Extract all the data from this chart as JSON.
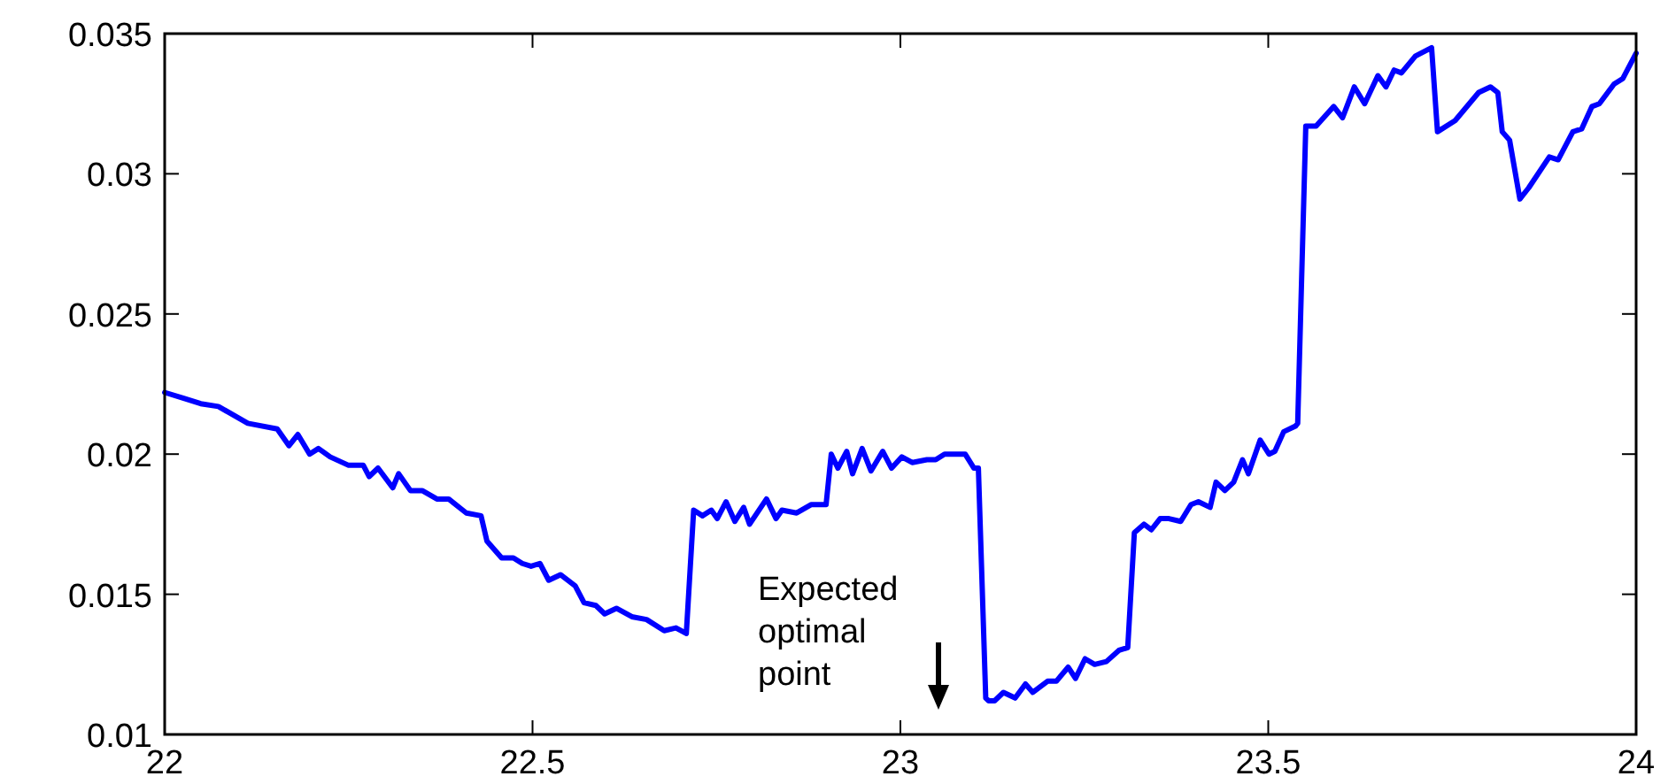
{
  "chart_data": {
    "type": "line",
    "x": [
      22.0,
      22.025,
      22.049,
      22.073,
      22.113,
      22.153,
      22.169,
      22.181,
      22.197,
      22.209,
      22.225,
      22.25,
      22.27,
      22.278,
      22.29,
      22.31,
      22.318,
      22.334,
      22.35,
      22.37,
      22.386,
      22.41,
      22.43,
      22.438,
      22.458,
      22.474,
      22.486,
      22.498,
      22.51,
      22.522,
      22.538,
      22.558,
      22.57,
      22.586,
      22.598,
      22.614,
      22.635,
      22.655,
      22.679,
      22.695,
      22.709,
      22.719,
      22.731,
      22.743,
      22.751,
      22.763,
      22.775,
      22.787,
      22.795,
      22.818,
      22.831,
      22.839,
      22.859,
      22.879,
      22.899,
      22.906,
      22.915,
      22.927,
      22.935,
      22.948,
      22.96,
      22.976,
      22.988,
      23.002,
      23.016,
      23.036,
      23.048,
      23.06,
      23.072,
      23.088,
      23.1,
      23.106,
      23.116,
      23.12,
      23.128,
      23.14,
      23.156,
      23.17,
      23.18,
      23.2,
      23.212,
      23.228,
      23.238,
      23.251,
      23.264,
      23.28,
      23.297,
      23.309,
      23.318,
      23.331,
      23.341,
      23.353,
      23.365,
      23.381,
      23.395,
      23.405,
      23.421,
      23.429,
      23.441,
      23.453,
      23.465,
      23.473,
      23.489,
      23.501,
      23.509,
      23.521,
      23.537,
      23.54,
      23.551,
      23.565,
      23.589,
      23.601,
      23.617,
      23.631,
      23.649,
      23.66,
      23.671,
      23.681,
      23.7,
      23.722,
      23.73,
      23.754,
      23.786,
      23.802,
      23.812,
      23.818,
      23.828,
      23.842,
      23.854,
      23.882,
      23.894,
      23.914,
      23.926,
      23.94,
      23.95,
      23.97,
      23.982,
      24.0
    ],
    "series": [
      {
        "color": "#0000ff",
        "values": [
          0.0222,
          0.022,
          0.0218,
          0.0217,
          0.0211,
          0.0209,
          0.0203,
          0.0207,
          0.02,
          0.0202,
          0.0199,
          0.0196,
          0.0196,
          0.0192,
          0.0195,
          0.0188,
          0.0193,
          0.0187,
          0.0187,
          0.0184,
          0.0184,
          0.0179,
          0.0178,
          0.0169,
          0.0163,
          0.0163,
          0.0161,
          0.016,
          0.0161,
          0.0155,
          0.0157,
          0.0153,
          0.0147,
          0.0146,
          0.0143,
          0.0145,
          0.0142,
          0.0141,
          0.0137,
          0.0138,
          0.0136,
          0.018,
          0.0178,
          0.018,
          0.0177,
          0.0183,
          0.0176,
          0.0181,
          0.0175,
          0.0184,
          0.0177,
          0.018,
          0.0179,
          0.0182,
          0.0182,
          0.02,
          0.0195,
          0.0201,
          0.0193,
          0.0202,
          0.0194,
          0.0201,
          0.0195,
          0.0199,
          0.0197,
          0.0198,
          0.0198,
          0.02,
          0.02,
          0.02,
          0.0195,
          0.0195,
          0.0113,
          0.0112,
          0.0112,
          0.0115,
          0.0113,
          0.0118,
          0.0115,
          0.0119,
          0.0119,
          0.0124,
          0.012,
          0.0127,
          0.0125,
          0.0126,
          0.013,
          0.0131,
          0.0172,
          0.0175,
          0.0173,
          0.0177,
          0.0177,
          0.0176,
          0.0182,
          0.0183,
          0.0181,
          0.019,
          0.0187,
          0.019,
          0.0198,
          0.0193,
          0.0205,
          0.02,
          0.0201,
          0.0208,
          0.021,
          0.0211,
          0.0317,
          0.0317,
          0.0324,
          0.032,
          0.0331,
          0.0325,
          0.0335,
          0.0331,
          0.0337,
          0.0336,
          0.0342,
          0.0345,
          0.0315,
          0.0319,
          0.0329,
          0.0331,
          0.0329,
          0.0315,
          0.0312,
          0.0291,
          0.0295,
          0.0306,
          0.0305,
          0.0315,
          0.0316,
          0.0324,
          0.0325,
          0.0332,
          0.0334,
          0.0343
        ]
      }
    ],
    "xlim": [
      22,
      24
    ],
    "xticks": [
      22,
      22.5,
      23,
      23.5,
      24
    ],
    "ylim": [
      0.01,
      0.035
    ],
    "yticks": [
      0.01,
      0.015,
      0.02,
      0.025,
      0.03,
      0.035
    ],
    "grid": false,
    "line_style": "solid",
    "marker": "none",
    "annotations": [
      "Expected optimal point"
    ]
  }
}
